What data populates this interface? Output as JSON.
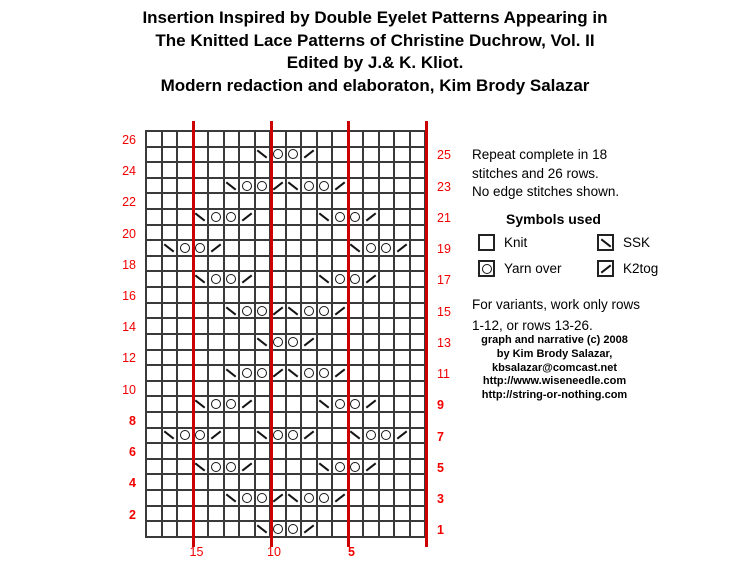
{
  "header": {
    "lines": [
      "Insertion Inspired by Double Eyelet Patterns Appearing in",
      "The Knitted Lace Patterns of Christine Duchrow, Vol. II",
      "Edited by J.& K. Kliot.",
      "Modern redaction and elaboraton, Kim Brody Salazar"
    ]
  },
  "notes": {
    "repeat_lines": [
      "Repeat complete in 18",
      "stitches and 26 rows.",
      "No edge stitches shown."
    ],
    "variants_lines": [
      "For variants, work only rows",
      "1-12, or rows 13-26."
    ],
    "credit_lines": [
      "graph and narrative (c) 2008",
      "by Kim Brody Salazar,",
      "kbsalazar@comcast.net",
      "http://www.wiseneedle.com",
      "http://string-or-nothing.com"
    ]
  },
  "legend": {
    "title": "Symbols used",
    "items": [
      {
        "symbol": "knit",
        "label": "Knit"
      },
      {
        "symbol": "ssk",
        "label": "SSK"
      },
      {
        "symbol": "yarn-over",
        "label": "Yarn over"
      },
      {
        "symbol": "k2tog",
        "label": "K2tog"
      }
    ]
  },
  "chart_data": {
    "type": "table",
    "title": "Double eyelet insertion knitting chart",
    "stitches": 18,
    "rows": 26,
    "cell_code_map": {
      "K": "knit (blank)",
      "S": "SSK (\\)",
      "O": "yarn over (O)",
      "T": "K2tog (/)"
    },
    "grid_rows_top_to_bottom": [
      "KKKKKKKKKKKKKKKKKK",
      "KKKKKKKSOOTKKKKKKK",
      "KKKKKKKKKKKKKKKKKK",
      "KKKKKSOOTSOOTKKKKK",
      "KKKKKKKKKKKKKKKKKK",
      "KKKSOOTKKKKSOOTKKK",
      "KKKKKKKKKKKKKKKKKK",
      "KSOOTKKKKKKKKSOOTK",
      "KKKKKKKKKKKKKKKKKK",
      "KKKSOOTKKKKSOOTKKK",
      "KKKKKKKKKKKKKKKKKK",
      "KKKKKSOOTSOOTKKKKK",
      "KKKKKKKKKKKKKKKKKK",
      "KKKKKKKSOOTKKKKKKK",
      "KKKKKKKKKKKKKKKKKK",
      "KKKKKSOOTSOOTKKKKK",
      "KKKKKKKKKKKKKKKKKK",
      "KKKSOOTKKKKSOOTKKK",
      "KKKKKKKKKKKKKKKKKK",
      "KSOOTKKSOOTKKSOOTK",
      "KKKKKKKKKKKKKKKKKK",
      "KKKSOOTKKKKSOOTKKK",
      "KKKKKKKKKKKKKKKKKK",
      "KKKKKSOOTSOOTKKKKK",
      "KKKKKKKKKKKKKKKKKK",
      "KKKKKKKSOOTKKKKKKK"
    ],
    "row_numbers_left": [
      "26",
      "24",
      "22",
      "20",
      "18",
      "16",
      "14",
      "12",
      "10",
      "8",
      "6",
      "4",
      "2"
    ],
    "row_numbers_right": [
      "25",
      "23",
      "21",
      "19",
      "17",
      "15",
      "13",
      "11",
      "9",
      "7",
      "5",
      "3",
      "1"
    ],
    "stitch_numbers_bottom": [
      "15",
      "10",
      "5"
    ],
    "repeat_marker_stitches": [
      15,
      10,
      5,
      0
    ]
  },
  "colors": {
    "marker_line": "#cc0000",
    "number_red": "#f20000",
    "grid_line": "#3a3a3a",
    "background": "#ffffff"
  }
}
